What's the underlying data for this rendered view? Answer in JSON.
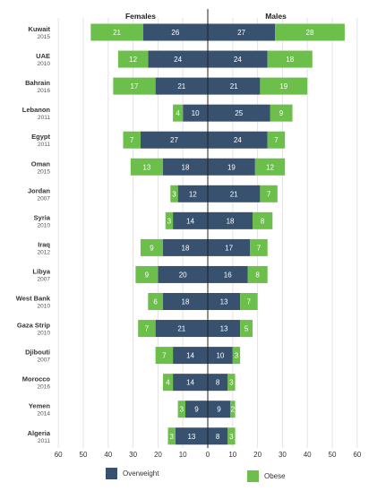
{
  "chart_data": {
    "type": "bar",
    "orientation": "horizontal-diverging",
    "panel_titles": {
      "left": "Females",
      "right": "Males"
    },
    "xlim": [
      -60,
      60
    ],
    "x_ticks": [
      60,
      50,
      40,
      30,
      20,
      10,
      0,
      10,
      20,
      30,
      40,
      50,
      60
    ],
    "grid": true,
    "legend_position": "bottom",
    "series": [
      {
        "name": "Overweight",
        "color": "#37516f"
      },
      {
        "name": "Obese",
        "color": "#6cbf4a"
      }
    ],
    "countries": [
      {
        "name": "Kuwait",
        "year": "2015",
        "female_overweight": 26,
        "female_obese": 21,
        "male_overweight": 27,
        "male_obese": 28
      },
      {
        "name": "UAE",
        "year": "2010",
        "female_overweight": 24,
        "female_obese": 12,
        "male_overweight": 24,
        "male_obese": 18
      },
      {
        "name": "Bahrain",
        "year": "2016",
        "female_overweight": 21,
        "female_obese": 17,
        "male_overweight": 21,
        "male_obese": 19
      },
      {
        "name": "Lebanon",
        "year": "2011",
        "female_overweight": 10,
        "female_obese": 4,
        "male_overweight": 25,
        "male_obese": 9
      },
      {
        "name": "Egypt",
        "year": "2011",
        "female_overweight": 27,
        "female_obese": 7,
        "male_overweight": 24,
        "male_obese": 7
      },
      {
        "name": "Oman",
        "year": "2015",
        "female_overweight": 18,
        "female_obese": 13,
        "male_overweight": 19,
        "male_obese": 12
      },
      {
        "name": "Jordan",
        "year": "2007",
        "female_overweight": 12,
        "female_obese": 3,
        "male_overweight": 21,
        "male_obese": 7
      },
      {
        "name": "Syria",
        "year": "2010",
        "female_overweight": 14,
        "female_obese": 3,
        "male_overweight": 18,
        "male_obese": 8
      },
      {
        "name": "Iraq",
        "year": "2012",
        "female_overweight": 18,
        "female_obese": 9,
        "male_overweight": 17,
        "male_obese": 7
      },
      {
        "name": "Libya",
        "year": "2007",
        "female_overweight": 20,
        "female_obese": 9,
        "male_overweight": 16,
        "male_obese": 8
      },
      {
        "name": "West Bank",
        "year": "2010",
        "female_overweight": 18,
        "female_obese": 6,
        "male_overweight": 13,
        "male_obese": 7
      },
      {
        "name": "Gaza Strip",
        "year": "2010",
        "female_overweight": 21,
        "female_obese": 7,
        "male_overweight": 13,
        "male_obese": 5
      },
      {
        "name": "Djibouti",
        "year": "2007",
        "female_overweight": 14,
        "female_obese": 7,
        "male_overweight": 10,
        "male_obese": 3
      },
      {
        "name": "Morocco",
        "year": "2016",
        "female_overweight": 14,
        "female_obese": 4,
        "male_overweight": 8,
        "male_obese": 3
      },
      {
        "name": "Yemen",
        "year": "2014",
        "female_overweight": 9,
        "female_obese": 3,
        "male_overweight": 9,
        "male_obese": 2
      },
      {
        "name": "Algeria",
        "year": "2011",
        "female_overweight": 13,
        "female_obese": 3,
        "male_overweight": 8,
        "male_obese": 3
      }
    ]
  }
}
